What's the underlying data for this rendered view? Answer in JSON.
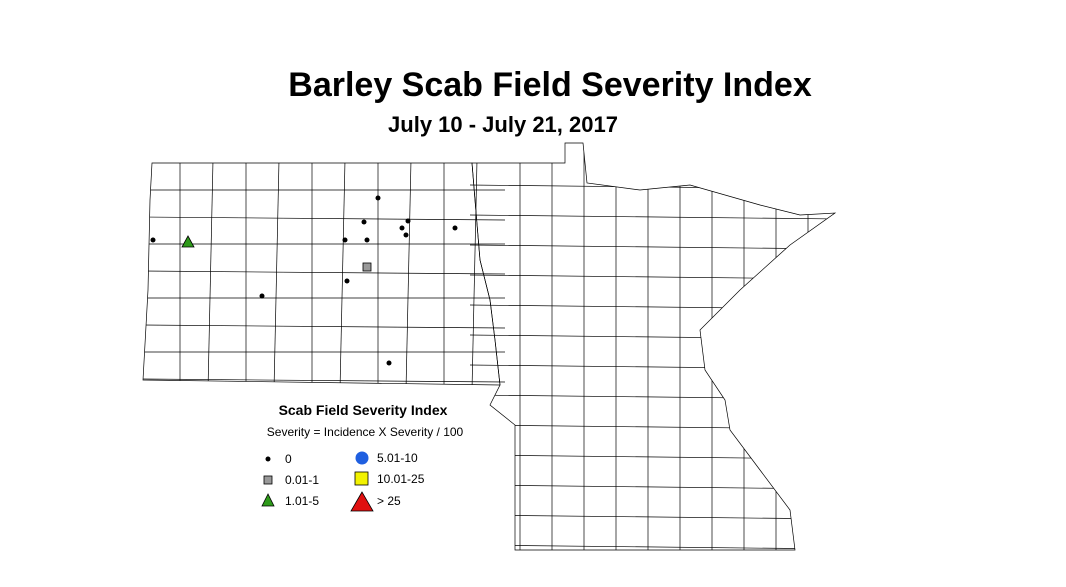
{
  "title": "Barley Scab Field Severity Index",
  "subtitle": "July 10 - July 21, 2017",
  "legend": {
    "title": "Scab Field Severity Index",
    "subtitle": "Severity = Incidence X Severity / 100",
    "entries": [
      "0",
      "0.01-1",
      "1.01-5",
      "5.01-10",
      "10.01-25",
      "> 25"
    ]
  }
}
